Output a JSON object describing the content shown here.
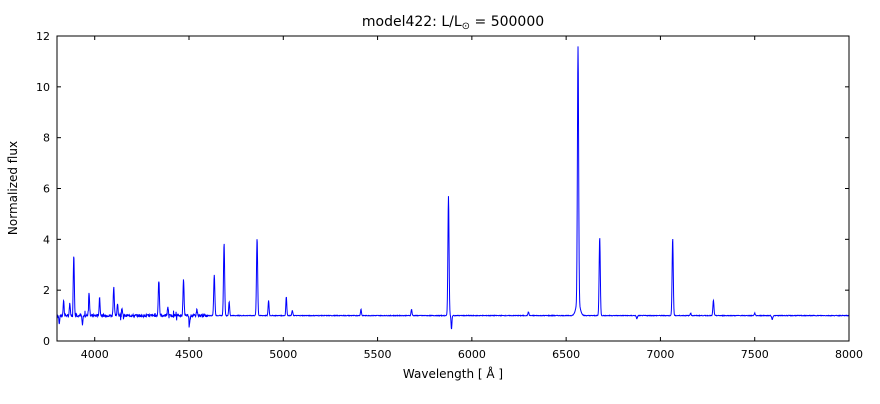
{
  "header": {
    "title_prefix": "model422: L/L",
    "title_sun": "⊙",
    "title_suffix": " = 500000"
  },
  "chart_data": {
    "type": "line",
    "title": "model422: L/L⊙ = 500000",
    "xlabel": "Wavelength [ Å ]",
    "ylabel": "Normalized flux",
    "xlim": [
      3800,
      8000
    ],
    "ylim": [
      0,
      12
    ],
    "xticks": [
      4000,
      4500,
      5000,
      5500,
      6000,
      6500,
      7000,
      7500,
      8000
    ],
    "yticks": [
      0,
      2,
      4,
      6,
      8,
      10,
      12
    ],
    "line_color": "#0000ff",
    "axis_color": "#000000",
    "background_color": "#ffffff",
    "legend": "none",
    "grid": false,
    "continuum_level": 1.0,
    "emission_lines": [
      {
        "wavelength": 3835,
        "peak": 1.6,
        "sigma": 2.5
      },
      {
        "wavelength": 3868,
        "peak": 1.5,
        "sigma": 2.5
      },
      {
        "wavelength": 3889,
        "peak": 3.4,
        "sigma": 2.8
      },
      {
        "wavelength": 3970,
        "peak": 1.9,
        "sigma": 2.8
      },
      {
        "wavelength": 4026,
        "peak": 1.7,
        "sigma": 2.5
      },
      {
        "wavelength": 4101,
        "peak": 2.15,
        "sigma": 2.8
      },
      {
        "wavelength": 4121,
        "peak": 1.5,
        "sigma": 2.5
      },
      {
        "wavelength": 4144,
        "peak": 1.3,
        "sigma": 2.5
      },
      {
        "wavelength": 4340,
        "peak": 2.5,
        "sigma": 2.8
      },
      {
        "wavelength": 4388,
        "peak": 1.35,
        "sigma": 2.5
      },
      {
        "wavelength": 4471,
        "peak": 2.4,
        "sigma": 2.8
      },
      {
        "wavelength": 4542,
        "peak": 1.25,
        "sigma": 2.5
      },
      {
        "wavelength": 4634,
        "peak": 2.6,
        "sigma": 3.0
      },
      {
        "wavelength": 4686,
        "peak": 3.85,
        "sigma": 3.0
      },
      {
        "wavelength": 4713,
        "peak": 1.55,
        "sigma": 2.5
      },
      {
        "wavelength": 4861,
        "peak": 4.05,
        "sigma": 3.0
      },
      {
        "wavelength": 4922,
        "peak": 1.6,
        "sigma": 2.5
      },
      {
        "wavelength": 5016,
        "peak": 1.75,
        "sigma": 2.5
      },
      {
        "wavelength": 5048,
        "peak": 1.2,
        "sigma": 2.5
      },
      {
        "wavelength": 5412,
        "peak": 1.25,
        "sigma": 2.5
      },
      {
        "wavelength": 5680,
        "peak": 1.25,
        "sigma": 2.5
      },
      {
        "wavelength": 5876,
        "peak": 5.7,
        "sigma": 3.0
      },
      {
        "wavelength": 6300,
        "peak": 1.15,
        "sigma": 2.5
      },
      {
        "wavelength": 6563,
        "peak": 11.1,
        "sigma": 3.2
      },
      {
        "wavelength": 6563,
        "peak": 1.5,
        "sigma": 11
      },
      {
        "wavelength": 6678,
        "peak": 4.1,
        "sigma": 3.0
      },
      {
        "wavelength": 7065,
        "peak": 4.05,
        "sigma": 3.0
      },
      {
        "wavelength": 7160,
        "peak": 1.1,
        "sigma": 2.5
      },
      {
        "wavelength": 7281,
        "peak": 1.6,
        "sigma": 2.8
      },
      {
        "wavelength": 7500,
        "peak": 1.1,
        "sigma": 2.5
      }
    ],
    "absorption_lines": [
      {
        "wavelength": 3812,
        "depth": 0.35,
        "sigma": 2.0
      },
      {
        "wavelength": 3935,
        "depth": 0.4,
        "sigma": 2.2
      },
      {
        "wavelength": 4502,
        "depth": 0.4,
        "sigma": 2.2
      },
      {
        "wavelength": 5892,
        "depth": 0.55,
        "sigma": 2.2
      },
      {
        "wavelength": 6875,
        "depth": 0.12,
        "sigma": 3.0
      },
      {
        "wavelength": 7593,
        "depth": 0.15,
        "sigma": 3.0
      }
    ],
    "noise": {
      "left_region_max_wavelength": 4600,
      "left_amplitude": 0.05,
      "right_amplitude": 0.012
    }
  }
}
